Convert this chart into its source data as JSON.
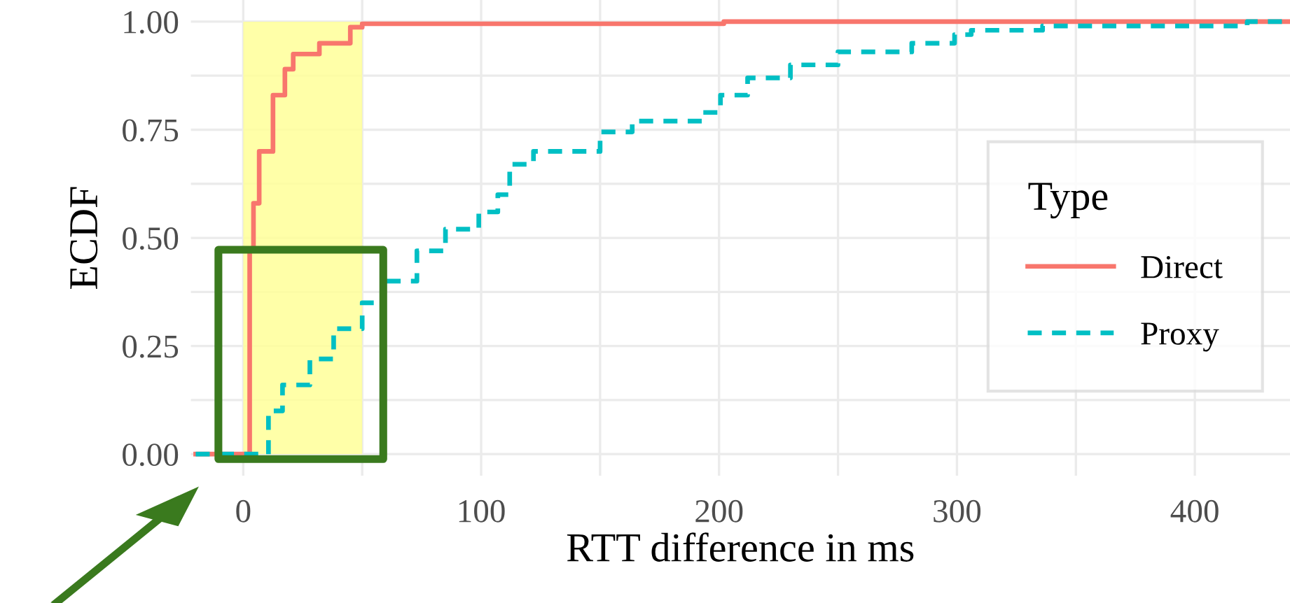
{
  "chart_data": {
    "type": "step",
    "xlabel": "RTT difference in ms",
    "ylabel": "ECDF",
    "legend_title": "Type",
    "legend": "right",
    "grid": true,
    "xlim": [
      -22,
      440
    ],
    "ylim": [
      -0.05,
      1.05
    ],
    "xticks": [
      0,
      {
        "value": 50,
        "label": null
      },
      100,
      {
        "value": 150,
        "label": null
      },
      200,
      {
        "value": 250,
        "label": null
      },
      300,
      {
        "value": 350,
        "label": null
      },
      400
    ],
    "yticks": [
      {
        "value": 0,
        "label": "0.00"
      },
      {
        "value": 0.125,
        "label": null
      },
      {
        "value": 0.25,
        "label": "0.25"
      },
      {
        "value": 0.375,
        "label": null
      },
      {
        "value": 0.5,
        "label": "0.50"
      },
      {
        "value": 0.625,
        "label": null
      },
      {
        "value": 0.75,
        "label": "0.75"
      },
      {
        "value": 0.875,
        "label": null
      },
      {
        "value": 1,
        "label": "1.00"
      }
    ],
    "bands": [
      {
        "axis": "x",
        "from": 0,
        "to": 50,
        "color": "#ffff99"
      }
    ],
    "series": [
      {
        "name": "Direct",
        "color": "#f8766d",
        "line_style": "solid",
        "x": [
          -20,
          0.6,
          2.7,
          4.3,
          6.7,
          12.5,
          17.5,
          21,
          32,
          45,
          50,
          202,
          440
        ],
        "values": [
          0,
          0,
          0.47,
          0.58,
          0.7,
          0.83,
          0.89,
          0.925,
          0.95,
          0.987,
          0.995,
          1.0,
          1.0
        ]
      },
      {
        "name": "Proxy",
        "color": "#00bfc4",
        "line_style": "dashed",
        "x": [
          -20,
          4.7,
          10.6,
          16.5,
          28,
          38,
          50,
          59,
          73,
          85,
          99,
          107,
          112,
          122,
          150,
          163.5,
          193,
          200.6,
          212,
          230,
          250,
          281,
          299,
          306,
          336,
          422,
          440
        ],
        "values": [
          0,
          0,
          0.1,
          0.16,
          0.22,
          0.29,
          0.35,
          0.4,
          0.47,
          0.52,
          0.56,
          0.6,
          0.67,
          0.7,
          0.745,
          0.77,
          0.79,
          0.83,
          0.87,
          0.9,
          0.93,
          0.95,
          0.97,
          0.98,
          0.99,
          1.0,
          1.0
        ]
      }
    ]
  }
}
